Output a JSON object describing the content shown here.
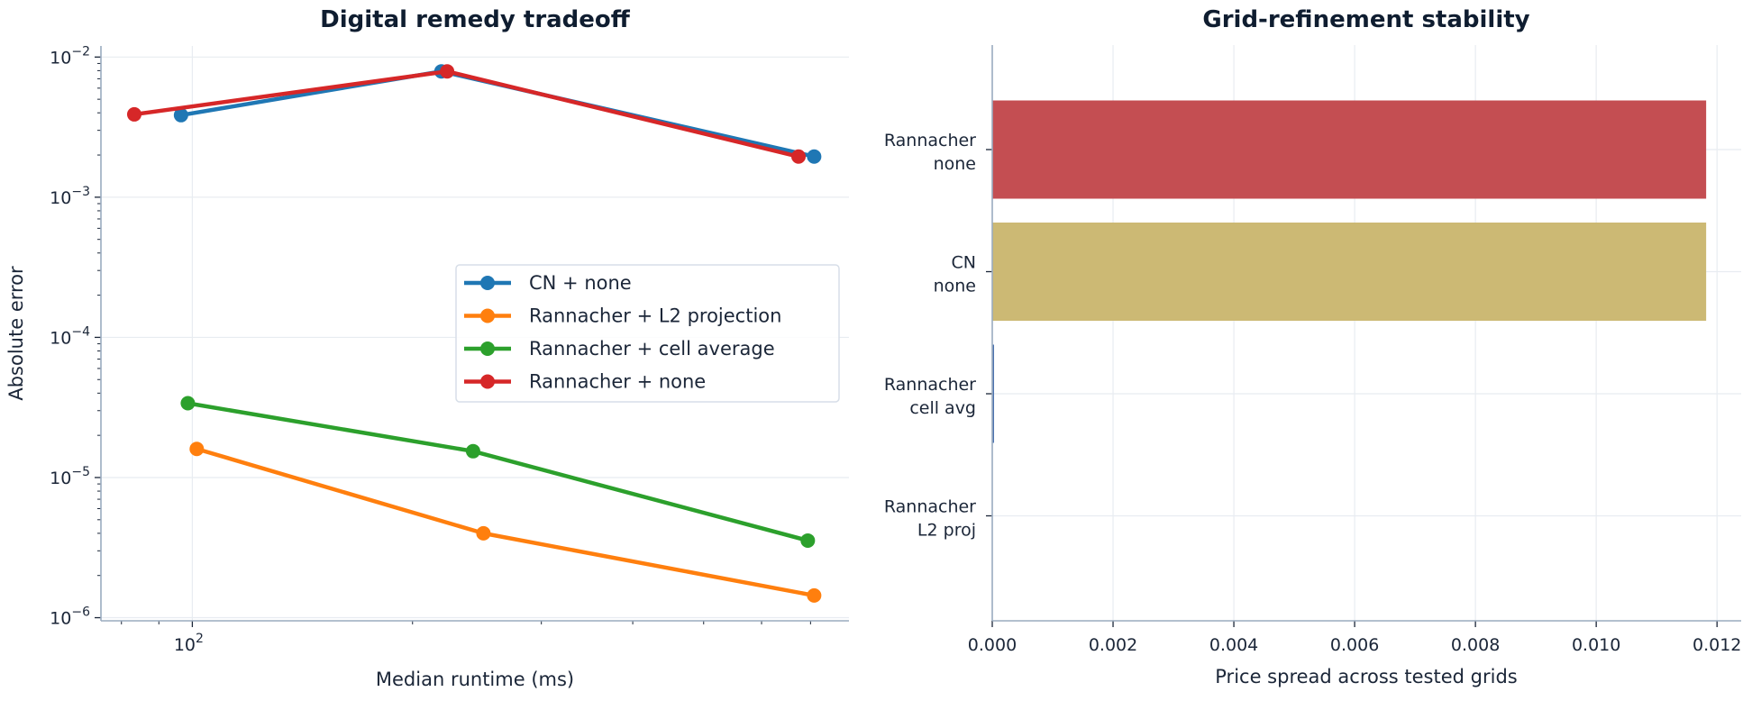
{
  "chart_data": [
    {
      "type": "line",
      "title": "Digital remedy tradeoff",
      "xlabel": "Median runtime (ms)",
      "ylabel": "Absolute error",
      "xscale": "log",
      "yscale": "log",
      "xlim": [
        75,
        790
      ],
      "ylim": [
        9.5e-07,
        0.012
      ],
      "grid": true,
      "legend_position": "center-right",
      "x_tick_labels": [
        {
          "value": 100,
          "base": "10",
          "exp": "2"
        }
      ],
      "y_tick_labels": [
        {
          "value": 0.01,
          "base": "10",
          "exp": "−2"
        },
        {
          "value": 0.001,
          "base": "10",
          "exp": "−3"
        },
        {
          "value": 0.0001,
          "base": "10",
          "exp": "−4"
        },
        {
          "value": 1e-05,
          "base": "10",
          "exp": "−5"
        },
        {
          "value": 1e-06,
          "base": "10",
          "exp": "−6"
        }
      ],
      "series": [
        {
          "name": "CN + none",
          "color": "#1f77b4",
          "x": [
            96.5,
            219,
            708
          ],
          "y": [
            0.00385,
            0.0079,
            0.00195
          ]
        },
        {
          "name": "Rannacher + L2 projection",
          "color": "#ff7f0e",
          "x": [
            101.4,
            250,
            708
          ],
          "y": [
            1.6e-05,
            4e-06,
            1.44e-06
          ]
        },
        {
          "name": "Rannacher + cell average",
          "color": "#2ca02c",
          "x": [
            98.6,
            242,
            694
          ],
          "y": [
            3.39e-05,
            1.54e-05,
            3.55e-06
          ]
        },
        {
          "name": "Rannacher + none",
          "color": "#d62728",
          "x": [
            83.3,
            223,
            674
          ],
          "y": [
            0.0039,
            0.0079,
            0.00195
          ]
        }
      ]
    },
    {
      "type": "bar",
      "orientation": "horizontal",
      "title": "Grid-refinement stability",
      "xlabel": "Price spread across tested grids",
      "ylabel": "",
      "xlim": [
        0,
        0.0124
      ],
      "grid": true,
      "x_tick_labels": [
        "0.000",
        "0.002",
        "0.004",
        "0.006",
        "0.008",
        "0.010",
        "0.012"
      ],
      "x_ticks": [
        0,
        0.002,
        0.004,
        0.006,
        0.008,
        0.01,
        0.012
      ],
      "categories": [
        {
          "line1": "Rannacher",
          "line2": "none"
        },
        {
          "line1": "CN",
          "line2": "none"
        },
        {
          "line1": "Rannacher",
          "line2": "cell avg"
        },
        {
          "line1": "Rannacher",
          "line2": "L2 proj"
        }
      ],
      "values": [
        0.01182,
        0.01182,
        1e-05,
        0.0
      ],
      "colors": [
        "#c44e52",
        "#ccb974",
        "#4c72b0",
        "#55a868"
      ]
    }
  ]
}
